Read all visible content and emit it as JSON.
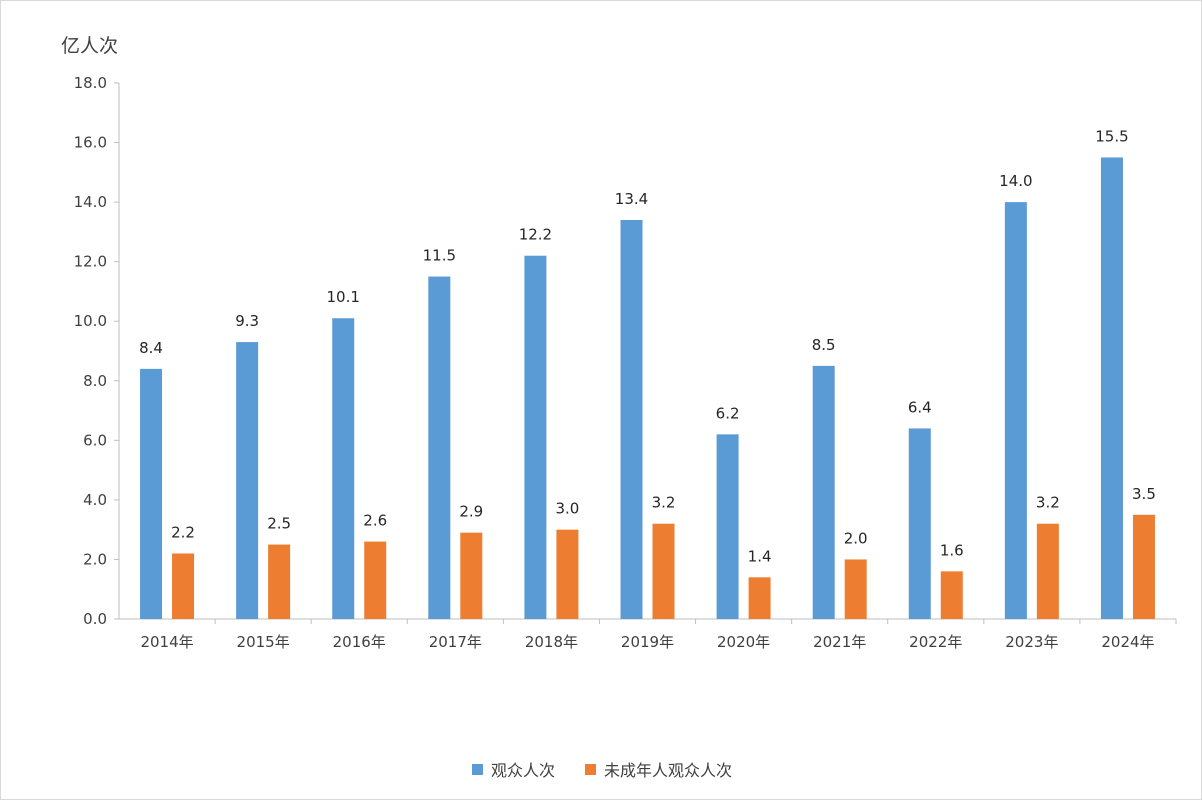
{
  "chart_data": {
    "type": "bar",
    "ylabel": "亿人次",
    "categories": [
      "2014年",
      "2015年",
      "2016年",
      "2017年",
      "2018年",
      "2019年",
      "2020年",
      "2021年",
      "2022年",
      "2023年",
      "2024年"
    ],
    "series": [
      {
        "name": "观众人次",
        "color": "#5B9BD5",
        "values": [
          8.4,
          9.3,
          10.1,
          11.5,
          12.2,
          13.4,
          6.2,
          8.5,
          6.4,
          14.0,
          15.5
        ]
      },
      {
        "name": "未成年人观众人次",
        "color": "#ED7D31",
        "values": [
          2.2,
          2.5,
          2.6,
          2.9,
          3.0,
          3.2,
          1.4,
          2.0,
          1.6,
          3.2,
          3.5
        ]
      }
    ],
    "ylim": [
      0,
      18
    ],
    "yticks": [
      "0.0",
      "2.0",
      "4.0",
      "6.0",
      "8.0",
      "10.0",
      "12.0",
      "14.0",
      "16.0",
      "18.0"
    ],
    "grid": false,
    "legend_position": "bottom"
  }
}
